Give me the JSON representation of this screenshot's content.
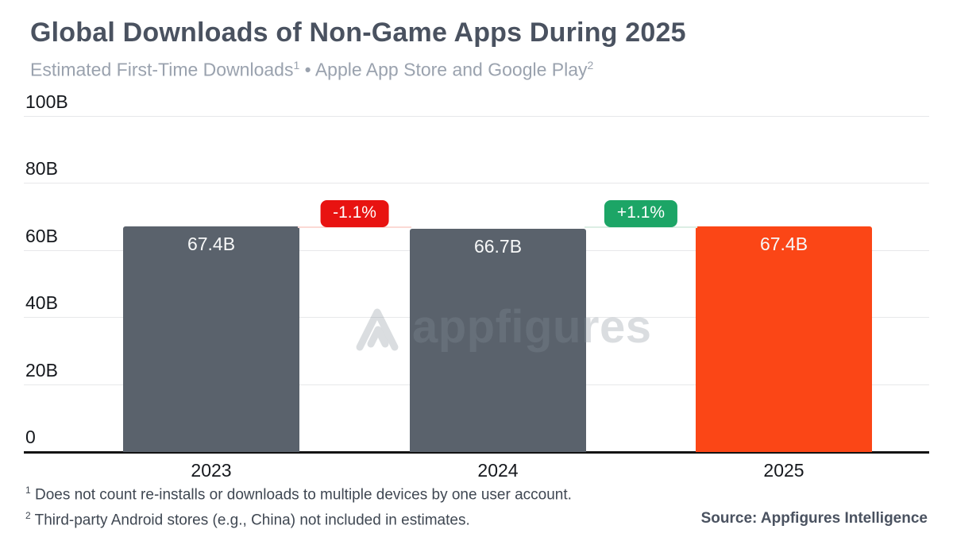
{
  "header": {
    "title": "Global Downloads of Non-Game Apps During 2025",
    "subtitle": {
      "part1": "Estimated First-Time Downloads",
      "sup1": "1",
      "separator": "•",
      "part2": "Apple App Store and Google Play",
      "sup2": "2"
    }
  },
  "chart_data": {
    "type": "bar",
    "title": "Global Downloads of Non-Game Apps During 2025",
    "categories": [
      "2023",
      "2024",
      "2025"
    ],
    "values": [
      67.4,
      66.7,
      67.4
    ],
    "value_labels": [
      "67.4B",
      "66.7B",
      "67.4B"
    ],
    "bar_colors": [
      "#5A626C",
      "#5A626C",
      "#FB4616"
    ],
    "ylim": [
      0,
      100
    ],
    "y_ticks": [
      {
        "value": 0,
        "label": "0"
      },
      {
        "value": 20,
        "label": "20B"
      },
      {
        "value": 40,
        "label": "40B"
      },
      {
        "value": 60,
        "label": "60B"
      },
      {
        "value": 80,
        "label": "80B"
      },
      {
        "value": 100,
        "label": "100B"
      }
    ],
    "grid": true,
    "legend": "none",
    "changes": [
      {
        "between": [
          "2023",
          "2024"
        ],
        "label": "-1.1%",
        "badge_color": "#E81311",
        "line_color": "#FBD9D5"
      },
      {
        "between": [
          "2024",
          "2025"
        ],
        "label": "+1.1%",
        "badge_color": "#1CA566",
        "line_color": "#DCEEE4"
      }
    ]
  },
  "watermark": {
    "text": "appfigures",
    "logo": "appfigures-logo"
  },
  "footnotes": [
    {
      "marker": "1",
      "text": "Does not count re-installs or downloads to multiple devices by one user account."
    },
    {
      "marker": "2",
      "text": "Third-party Android stores (e.g., China) not included in estimates."
    }
  ],
  "source": "Source: Appfigures Intelligence"
}
